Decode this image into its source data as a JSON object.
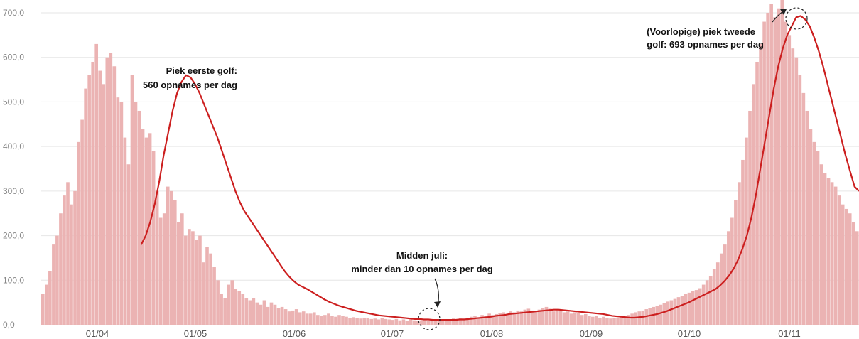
{
  "chart_data": {
    "type": "bar",
    "x_start": "2020-03-15",
    "ylim": [
      0,
      700
    ],
    "y_ticks": [
      "0,0",
      "100,0",
      "200,0",
      "300,0",
      "400,0",
      "500,0",
      "600,0",
      "700,0"
    ],
    "x_ticks": [
      "01/04",
      "01/05",
      "01/06",
      "01/07",
      "01/08",
      "01/09",
      "01/10",
      "01/11"
    ],
    "grid": true,
    "bar_color": "#ebb3b3",
    "line_color": "#cc1f1f",
    "series": [
      {
        "type": "bar",
        "values": [
          70,
          90,
          120,
          180,
          200,
          250,
          290,
          320,
          270,
          300,
          410,
          460,
          530,
          560,
          590,
          630,
          570,
          540,
          600,
          610,
          580,
          510,
          500,
          420,
          360,
          560,
          500,
          480,
          440,
          420,
          430,
          390,
          300,
          240,
          250,
          310,
          300,
          280,
          230,
          250,
          200,
          215,
          210,
          190,
          200,
          140,
          175,
          160,
          130,
          100,
          70,
          60,
          90,
          100,
          80,
          75,
          70,
          60,
          55,
          60,
          50,
          45,
          55,
          40,
          50,
          45,
          38,
          40,
          35,
          30,
          32,
          35,
          28,
          30,
          25,
          25,
          28,
          22,
          20,
          22,
          25,
          20,
          18,
          22,
          20,
          18,
          15,
          17,
          15,
          14,
          16,
          15,
          13,
          14,
          12,
          15,
          13,
          12,
          11,
          13,
          10,
          12,
          9,
          12,
          10,
          9,
          8,
          10,
          9,
          10,
          8,
          9,
          10,
          11,
          12,
          14,
          12,
          15,
          14,
          16,
          18,
          20,
          16,
          22,
          20,
          25,
          22,
          24,
          26,
          28,
          24,
          30,
          28,
          32,
          30,
          34,
          36,
          32,
          30,
          34,
          38,
          40,
          36,
          30,
          34,
          32,
          28,
          30,
          25,
          28,
          26,
          22,
          24,
          20,
          18,
          20,
          16,
          18,
          15,
          14,
          16,
          15,
          18,
          20,
          22,
          25,
          28,
          30,
          32,
          35,
          38,
          40,
          42,
          45,
          48,
          52,
          55,
          58,
          62,
          65,
          70,
          72,
          75,
          78,
          82,
          90,
          100,
          110,
          125,
          140,
          160,
          180,
          210,
          240,
          280,
          320,
          370,
          420,
          480,
          540,
          590,
          630,
          680,
          700,
          720,
          690,
          710,
          740,
          680,
          650,
          620,
          600,
          560,
          520,
          480,
          440,
          410,
          390,
          360,
          340,
          330,
          320,
          310,
          290,
          270,
          260,
          250,
          230,
          210
        ]
      },
      {
        "type": "line",
        "values": [
          180,
          200,
          230,
          270,
          320,
          380,
          430,
          480,
          520,
          545,
          560,
          555,
          540,
          520,
          495,
          470,
          445,
          420,
          390,
          360,
          330,
          300,
          275,
          255,
          240,
          225,
          210,
          195,
          180,
          165,
          150,
          135,
          120,
          108,
          98,
          90,
          85,
          80,
          74,
          68,
          62,
          56,
          51,
          47,
          43,
          40,
          37,
          34,
          31,
          29,
          27,
          25,
          23,
          21,
          20,
          19,
          18,
          17,
          16,
          15,
          14,
          13,
          13,
          12,
          12,
          11,
          11,
          11,
          11,
          11,
          11,
          12,
          12,
          13,
          14,
          15,
          16,
          17,
          18,
          20,
          21,
          22,
          24,
          25,
          26,
          27,
          28,
          29,
          30,
          31,
          32,
          33,
          34,
          34,
          33,
          32,
          31,
          30,
          29,
          28,
          27,
          26,
          25,
          24,
          22,
          20,
          19,
          18,
          17,
          16,
          16,
          17,
          18,
          20,
          22,
          24,
          27,
          30,
          34,
          38,
          42,
          46,
          50,
          55,
          60,
          65,
          70,
          75,
          80,
          88,
          98,
          110,
          125,
          145,
          170,
          200,
          240,
          290,
          350,
          410,
          470,
          530,
          580,
          620,
          650,
          670,
          690,
          693,
          685,
          670,
          645,
          615,
          580,
          540,
          500,
          460,
          420,
          380,
          345,
          310,
          300
        ]
      }
    ],
    "annotations": [
      {
        "lines": [
          "Piek eerste golf:",
          "560 opnames per dag"
        ],
        "x": "2020-04-22",
        "y": 560
      },
      {
        "lines": [
          "Midden juli:",
          "minder dan 10 opnames per dag"
        ],
        "x": "2020-07-15",
        "y": 10
      },
      {
        "lines": [
          "(Voorlopige) piek tweede",
          "golf: 693 opnames per dag"
        ],
        "x": "2020-11-01",
        "y": 693
      }
    ]
  }
}
